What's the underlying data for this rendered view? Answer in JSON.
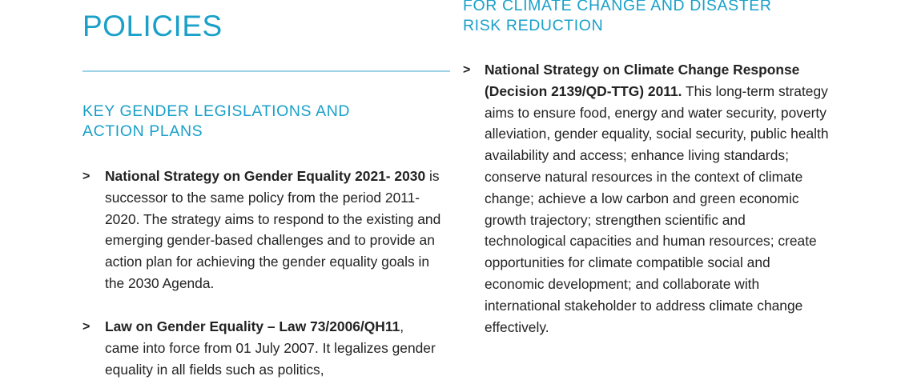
{
  "left": {
    "title": "POLICIES",
    "section_heading": "KEY GENDER LEGISLATIONS AND ACTION PLANS",
    "items": [
      {
        "marker": ">",
        "bold": "National Strategy on Gender Equality 2021- 2030",
        "text": "is successor to the same policy from the period 2011-2020. The strategy aims to respond to the existing and emerging gender-based challenges and to provide an action plan for achieving the gender equality goals in the 2030 Agenda."
      },
      {
        "marker": ">",
        "bold": "Law on Gender Equality – Law 73/2006/QH11",
        "text": ", came into force from 01 July 2007. It legalizes gender equality in all fields such as politics,"
      }
    ]
  },
  "right": {
    "section_heading": "FOR CLIMATE CHANGE AND DISASTER RISK REDUCTION",
    "items": [
      {
        "marker": ">",
        "bold": "National Strategy on Climate Change Response (Decision 2139/QD-TTG) 2011.",
        "text": " This long-term strategy aims to ensure food, energy and water security, poverty alleviation, gender equality, social security, public health availability and access; enhance living standards; conserve natural resources in the context of climate change; achieve a low carbon and green economic growth trajectory; strengthen scientific and technological capacities and human resources; create opportunities for climate compatible social and economic development; and collaborate with international stakeholder to address climate change effectively."
      }
    ]
  }
}
